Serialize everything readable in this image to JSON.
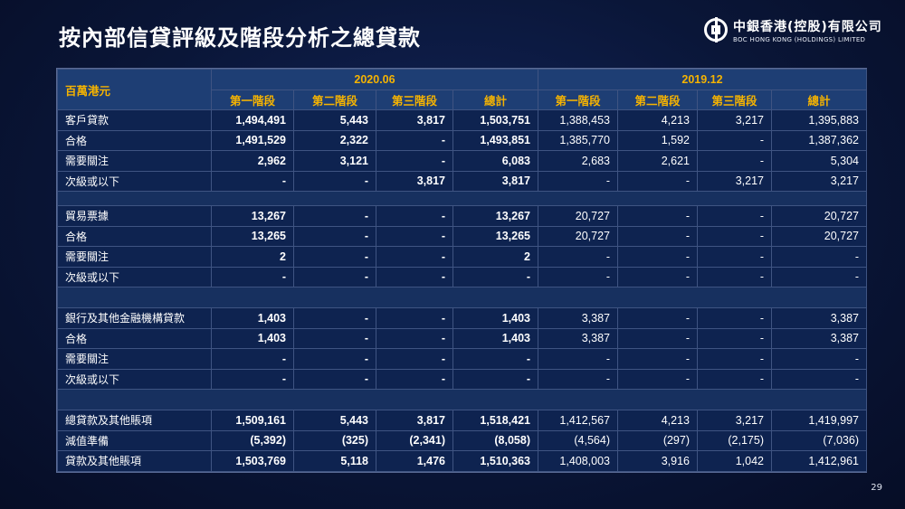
{
  "title": "按內部信貸評級及階段分析之總貸款",
  "logo": {
    "name_cn": "中銀香港(控股)有限公司",
    "name_en": "BOC HONG KONG (HOLDINGS) LIMITED"
  },
  "page_number": "29",
  "table": {
    "unit_label": "百萬港元",
    "periods": [
      "2020.06",
      "2019.12"
    ],
    "stages": [
      "第一階段",
      "第二階段",
      "第三階段",
      "總計"
    ],
    "sections": [
      {
        "rows": [
          {
            "label": "客戶貸款",
            "values": [
              "1,494,491",
              "5,443",
              "3,817",
              "1,503,751",
              "1,388,453",
              "4,213",
              "3,217",
              "1,395,883"
            ]
          },
          {
            "label": "合格",
            "values": [
              "1,491,529",
              "2,322",
              "-",
              "1,493,851",
              "1,385,770",
              "1,592",
              "-",
              "1,387,362"
            ]
          },
          {
            "label": "需要關注",
            "values": [
              "2,962",
              "3,121",
              "-",
              "6,083",
              "2,683",
              "2,621",
              "-",
              "5,304"
            ]
          },
          {
            "label": "次級或以下",
            "values": [
              "-",
              "-",
              "3,817",
              "3,817",
              "-",
              "-",
              "3,217",
              "3,217"
            ]
          }
        ]
      },
      {
        "rows": [
          {
            "label": "貿易票據",
            "values": [
              "13,267",
              "-",
              "-",
              "13,267",
              "20,727",
              "-",
              "-",
              "20,727"
            ]
          },
          {
            "label": "合格",
            "values": [
              "13,265",
              "-",
              "-",
              "13,265",
              "20,727",
              "-",
              "-",
              "20,727"
            ]
          },
          {
            "label": "需要關注",
            "values": [
              "2",
              "-",
              "-",
              "2",
              "-",
              "-",
              "-",
              "-"
            ]
          },
          {
            "label": "次級或以下",
            "values": [
              "-",
              "-",
              "-",
              "-",
              "-",
              "-",
              "-",
              "-"
            ]
          }
        ]
      },
      {
        "rows": [
          {
            "label": "銀行及其他金融機構貸款",
            "values": [
              "1,403",
              "-",
              "-",
              "1,403",
              "3,387",
              "-",
              "-",
              "3,387"
            ]
          },
          {
            "label": "合格",
            "values": [
              "1,403",
              "-",
              "-",
              "1,403",
              "3,387",
              "-",
              "-",
              "3,387"
            ]
          },
          {
            "label": "需要關注",
            "values": [
              "-",
              "-",
              "-",
              "-",
              "-",
              "-",
              "-",
              "-"
            ]
          },
          {
            "label": "次級或以下",
            "values": [
              "-",
              "-",
              "-",
              "-",
              "-",
              "-",
              "-",
              "-"
            ]
          }
        ]
      },
      {
        "rows": [
          {
            "label": "總貸款及其他賬項",
            "values": [
              "1,509,161",
              "5,443",
              "3,817",
              "1,518,421",
              "1,412,567",
              "4,213",
              "3,217",
              "1,419,997"
            ]
          },
          {
            "label": "減值準備",
            "values": [
              "(5,392)",
              "(325)",
              "(2,341)",
              "(8,058)",
              "(4,564)",
              "(297)",
              "(2,175)",
              "(7,036)"
            ]
          },
          {
            "label": "貸款及其他賬項",
            "values": [
              "1,503,769",
              "5,118",
              "1,476",
              "1,510,363",
              "1,408,003",
              "3,916",
              "1,042",
              "1,412,961"
            ]
          }
        ]
      }
    ]
  }
}
